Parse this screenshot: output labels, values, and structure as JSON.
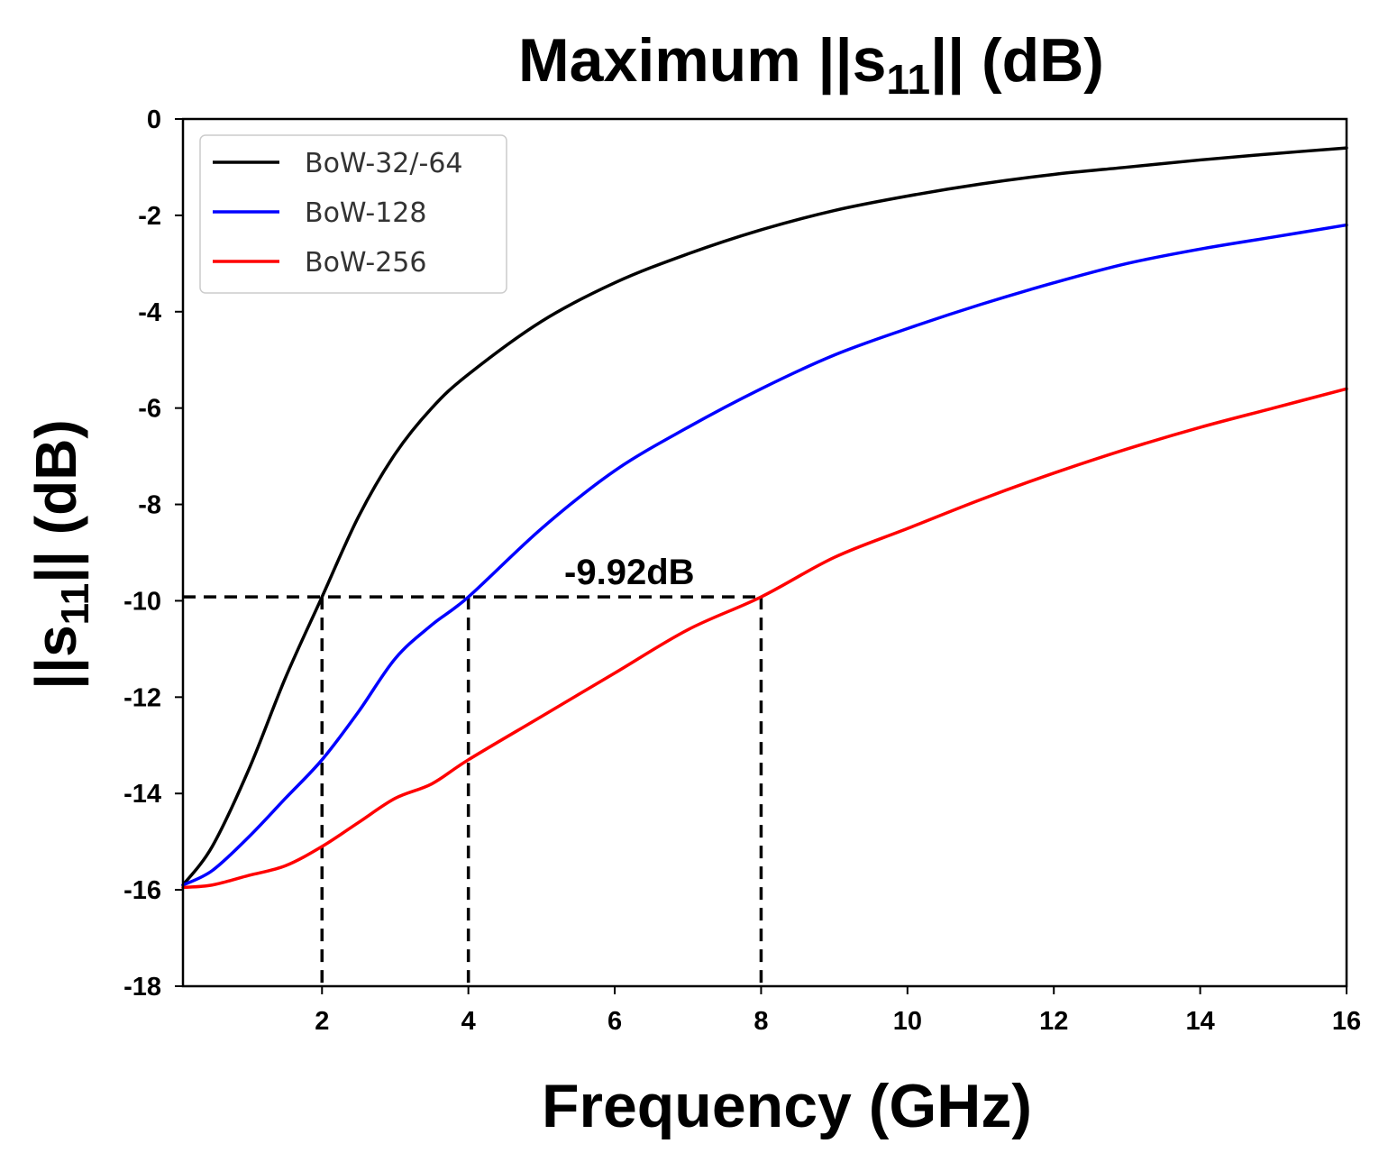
{
  "chart_data": {
    "type": "line",
    "title": {
      "main": "Maximum ||s",
      "sub": "11",
      "suffix": "|| (dB)"
    },
    "xlabel": "Frequency (GHz)",
    "ylabel": {
      "main": "||s",
      "sub": "11",
      "suffix": "|| (dB)"
    },
    "xlim": [
      0.1,
      16
    ],
    "ylim": [
      -18,
      0
    ],
    "xticks": [
      2,
      4,
      6,
      8,
      10,
      12,
      14,
      16
    ],
    "yticks": [
      0,
      -2,
      -4,
      -6,
      -8,
      -10,
      -12,
      -14,
      -16,
      -18
    ],
    "grid": false,
    "legend_position": "top-left",
    "series": [
      {
        "name": "BoW-32/-64",
        "color": "#000000",
        "x": [
          0.1,
          0.5,
          1.0,
          1.5,
          2.0,
          2.5,
          3.0,
          3.5,
          4.0,
          5.0,
          6.0,
          7.0,
          8.0,
          9.0,
          10.0,
          11.0,
          12.0,
          13.0,
          14.0,
          15.0,
          16.0
        ],
        "y": [
          -15.9,
          -15.1,
          -13.5,
          -11.6,
          -9.92,
          -8.25,
          -6.95,
          -6.0,
          -5.3,
          -4.2,
          -3.4,
          -2.8,
          -2.3,
          -1.9,
          -1.6,
          -1.35,
          -1.15,
          -1.0,
          -0.85,
          -0.72,
          -0.6
        ]
      },
      {
        "name": "BoW-128",
        "color": "#0000ff",
        "x": [
          0.1,
          0.5,
          1.0,
          1.5,
          2.0,
          2.5,
          3.0,
          3.5,
          4.0,
          5.0,
          6.0,
          7.0,
          8.0,
          9.0,
          10.0,
          11.0,
          12.0,
          13.0,
          14.0,
          15.0,
          16.0
        ],
        "y": [
          -15.9,
          -15.6,
          -14.9,
          -14.1,
          -13.3,
          -12.3,
          -11.2,
          -10.5,
          -9.92,
          -8.5,
          -7.3,
          -6.4,
          -5.6,
          -4.9,
          -4.35,
          -3.85,
          -3.4,
          -3.0,
          -2.7,
          -2.45,
          -2.2
        ]
      },
      {
        "name": "BoW-256",
        "color": "#ff0000",
        "x": [
          0.1,
          0.5,
          1.0,
          1.5,
          2.0,
          2.5,
          3.0,
          3.5,
          4.0,
          5.0,
          6.0,
          7.0,
          8.0,
          9.0,
          10.0,
          11.0,
          12.0,
          13.0,
          14.0,
          15.0,
          16.0
        ],
        "y": [
          -15.95,
          -15.9,
          -15.7,
          -15.5,
          -15.1,
          -14.6,
          -14.1,
          -13.8,
          -13.3,
          -12.4,
          -11.5,
          -10.6,
          -9.92,
          -9.1,
          -8.5,
          -7.9,
          -7.35,
          -6.85,
          -6.4,
          -6.0,
          -5.6
        ]
      }
    ],
    "reference_lines": {
      "y_value": -9.92,
      "x_values": [
        2,
        4,
        8
      ],
      "color": "#000000",
      "style": "dashed"
    },
    "annotation": {
      "text": "-9.92dB",
      "x": 6.2,
      "y": -9.92
    }
  }
}
